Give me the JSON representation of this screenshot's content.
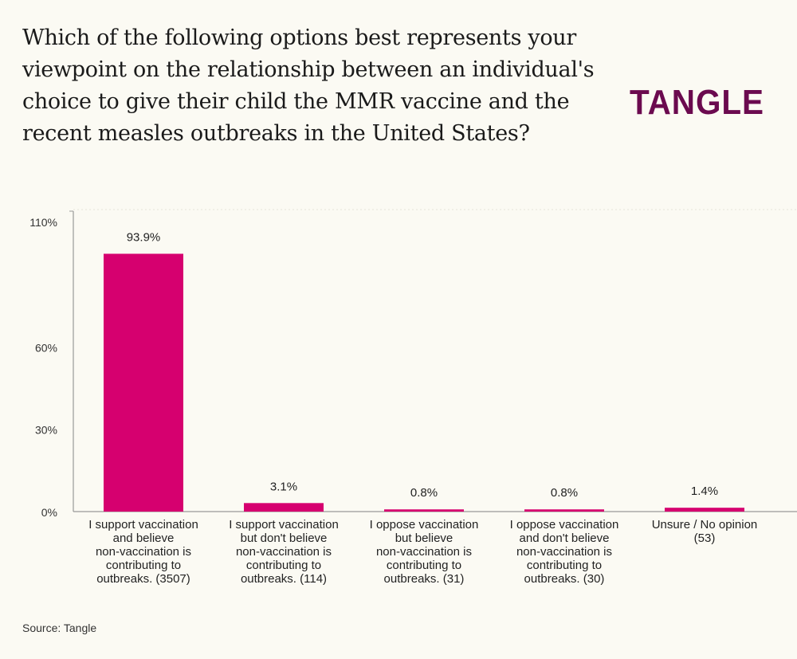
{
  "title": "Which of the following options best represents your viewpoint on the relationship between an individual's choice to give their child the MMR vaccine and the recent measles outbreaks in the United States?",
  "logo": "TANGLE",
  "source": "Source: Tangle",
  "colors": {
    "bar": "#d6006f",
    "logo": "#6b0a4f",
    "background": "#fbfaf3"
  },
  "chart_data": {
    "type": "bar",
    "title": "Which of the following options best represents your viewpoint on the relationship between an individual's choice to give their child the MMR vaccine and the recent measles outbreaks in the United States?",
    "categories": [
      [
        "I support vaccination",
        "and believe",
        "non-vaccination is",
        "contributing to",
        "outbreaks. (3507)"
      ],
      [
        "I support vaccination",
        "but don't believe",
        "non-vaccination is",
        "contributing to",
        "outbreaks. (114)"
      ],
      [
        "I oppose vaccination",
        "but believe",
        "non-vaccination is",
        "contributing to",
        "outbreaks. (31)"
      ],
      [
        "I oppose vaccination",
        "and don't believe",
        "non-vaccination is",
        "contributing to",
        "outbreaks. (30)"
      ],
      [
        "Unsure / No opinion",
        "(53)"
      ]
    ],
    "values": [
      93.9,
      3.1,
      0.8,
      0.8,
      1.4
    ],
    "data_labels": [
      "93.9%",
      "3.1%",
      "0.8%",
      "0.8%",
      "1.4%"
    ],
    "yticks": [
      0,
      30,
      60,
      110
    ],
    "ytick_labels": [
      "0%",
      "30%",
      "60%",
      "110%"
    ],
    "ylim": [
      0,
      110
    ],
    "xlabel": "",
    "ylabel": ""
  }
}
